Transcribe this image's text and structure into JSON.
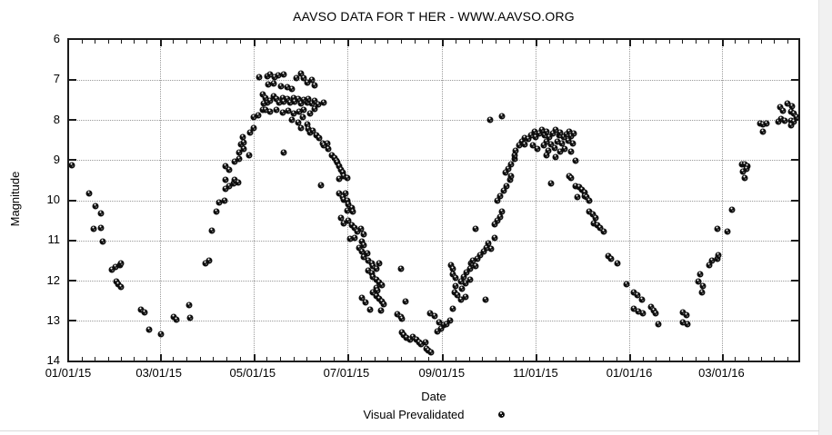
{
  "title": "AAVSO DATA FOR T HER - WWW.AAVSO.ORG",
  "colors": {
    "background": "#ffffff",
    "point": "#0d0d0d",
    "axis": "#1b1b1b",
    "grid": "#9a9a9a",
    "text": "#000000"
  },
  "chart_data": {
    "type": "scatter",
    "title": "AAVSO DATA FOR T HER - WWW.AAVSO.ORG",
    "xlabel": "Date",
    "ylabel": "Magnitude",
    "grid": "dotted",
    "legend": {
      "label": "Visual Prevalidated",
      "marker": "speckled-circle",
      "position": "below-center"
    },
    "x_axis": {
      "type": "time",
      "range_days": [
        0,
        475
      ],
      "tick_days": [
        0,
        59,
        120,
        181,
        243,
        304,
        365,
        425
      ],
      "tick_labels": [
        "01/01/15",
        "03/01/15",
        "05/01/15",
        "07/01/15",
        "09/01/15",
        "11/01/15",
        "01/01/16",
        "03/01/16"
      ],
      "minor_intervals_per_major": 7
    },
    "y_axis": {
      "range": [
        6,
        14
      ],
      "inverted": true,
      "tick_values": [
        6,
        7,
        8,
        9,
        10,
        11,
        12,
        13,
        14
      ],
      "tick_labels": [
        "6",
        "7",
        "8",
        "9",
        "10",
        "11",
        "12",
        "13",
        "14"
      ]
    },
    "points_format": [
      "days_since_2015-01-01",
      "magnitude"
    ],
    "points": [
      [
        2,
        9.12
      ],
      [
        13,
        9.82
      ],
      [
        17,
        10.14
      ],
      [
        21,
        10.32
      ],
      [
        16,
        10.72
      ],
      [
        21,
        10.68
      ],
      [
        22,
        11.04
      ],
      [
        28,
        11.74
      ],
      [
        30,
        11.67
      ],
      [
        33,
        11.63
      ],
      [
        34,
        11.58
      ],
      [
        31,
        12.03
      ],
      [
        32,
        12.1
      ],
      [
        34,
        12.17
      ],
      [
        47,
        12.73
      ],
      [
        49,
        12.8
      ],
      [
        52,
        13.23
      ],
      [
        60,
        13.34
      ],
      [
        68,
        12.92
      ],
      [
        70,
        12.98
      ],
      [
        78,
        12.62
      ],
      [
        79,
        12.94
      ],
      [
        89,
        11.58
      ],
      [
        91,
        11.51
      ],
      [
        93,
        10.75
      ],
      [
        96,
        10.29
      ],
      [
        98,
        10.05
      ],
      [
        101,
        10.0
      ],
      [
        102,
        9.71
      ],
      [
        104,
        9.64
      ],
      [
        107,
        9.59
      ],
      [
        102,
        9.48
      ],
      [
        104,
        9.23
      ],
      [
        102,
        9.14
      ],
      [
        108,
        9.5
      ],
      [
        110,
        9.55
      ],
      [
        108,
        9.03
      ],
      [
        111,
        8.98
      ],
      [
        111,
        8.8
      ],
      [
        114,
        8.73
      ],
      [
        112,
        8.6
      ],
      [
        114,
        8.55
      ],
      [
        113,
        8.42
      ],
      [
        117,
        8.87
      ],
      [
        118,
        8.31
      ],
      [
        120,
        8.19
      ],
      [
        120,
        7.92
      ],
      [
        123,
        7.88
      ],
      [
        126,
        7.74
      ],
      [
        127,
        7.58
      ],
      [
        129,
        7.56
      ],
      [
        124,
        6.93
      ],
      [
        129,
        6.9
      ],
      [
        131,
        6.86
      ],
      [
        134,
        6.93
      ],
      [
        136,
        6.88
      ],
      [
        140,
        6.86
      ],
      [
        130,
        7.11
      ],
      [
        133,
        7.08
      ],
      [
        138,
        7.15
      ],
      [
        142,
        7.18
      ],
      [
        145,
        7.22
      ],
      [
        148,
        6.95
      ],
      [
        151,
        6.84
      ],
      [
        153,
        6.95
      ],
      [
        155,
        7.06
      ],
      [
        158,
        6.99
      ],
      [
        160,
        7.13
      ],
      [
        126,
        7.36
      ],
      [
        128,
        7.45
      ],
      [
        131,
        7.51
      ],
      [
        133,
        7.4
      ],
      [
        135,
        7.47
      ],
      [
        137,
        7.56
      ],
      [
        139,
        7.45
      ],
      [
        140,
        7.54
      ],
      [
        142,
        7.47
      ],
      [
        144,
        7.56
      ],
      [
        146,
        7.45
      ],
      [
        147,
        7.54
      ],
      [
        149,
        7.47
      ],
      [
        151,
        7.58
      ],
      [
        153,
        7.49
      ],
      [
        155,
        7.56
      ],
      [
        156,
        7.47
      ],
      [
        158,
        7.58
      ],
      [
        160,
        7.51
      ],
      [
        162,
        7.6
      ],
      [
        128,
        7.74
      ],
      [
        131,
        7.79
      ],
      [
        135,
        7.74
      ],
      [
        139,
        7.81
      ],
      [
        143,
        7.76
      ],
      [
        146,
        7.83
      ],
      [
        150,
        7.79
      ],
      [
        153,
        7.74
      ],
      [
        157,
        7.83
      ],
      [
        160,
        7.72
      ],
      [
        145,
        7.99
      ],
      [
        149,
        8.06
      ],
      [
        152,
        7.92
      ],
      [
        155,
        8.1
      ],
      [
        151,
        8.19
      ],
      [
        140,
        8.8
      ],
      [
        166,
        7.56
      ],
      [
        164,
        9.62
      ],
      [
        156,
        8.22
      ],
      [
        157,
        8.31
      ],
      [
        159,
        8.26
      ],
      [
        161,
        8.37
      ],
      [
        163,
        8.44
      ],
      [
        165,
        8.58
      ],
      [
        166,
        8.64
      ],
      [
        168,
        8.58
      ],
      [
        169,
        8.71
      ],
      [
        171,
        8.87
      ],
      [
        173,
        8.94
      ],
      [
        174,
        9.01
      ],
      [
        175,
        9.05
      ],
      [
        176,
        9.16
      ],
      [
        177,
        9.25
      ],
      [
        178,
        9.32
      ],
      [
        179,
        9.39
      ],
      [
        181,
        9.44
      ],
      [
        176,
        9.46
      ],
      [
        176,
        9.82
      ],
      [
        178,
        9.91
      ],
      [
        179,
        9.98
      ],
      [
        180,
        9.84
      ],
      [
        181,
        10.02
      ],
      [
        182,
        10.11
      ],
      [
        184,
        10.2
      ],
      [
        185,
        10.29
      ],
      [
        181,
        10.25
      ],
      [
        177,
        10.45
      ],
      [
        179,
        10.57
      ],
      [
        182,
        10.5
      ],
      [
        184,
        10.63
      ],
      [
        186,
        10.7
      ],
      [
        188,
        10.79
      ],
      [
        190,
        10.72
      ],
      [
        192,
        10.86
      ],
      [
        186,
        10.93
      ],
      [
        183,
        10.97
      ],
      [
        191,
        11.04
      ],
      [
        192,
        11.13
      ],
      [
        189,
        11.18
      ],
      [
        191,
        11.27
      ],
      [
        194,
        11.33
      ],
      [
        192,
        11.42
      ],
      [
        195,
        11.51
      ],
      [
        197,
        11.58
      ],
      [
        198,
        11.65
      ],
      [
        200,
        11.72
      ],
      [
        202,
        11.58
      ],
      [
        195,
        11.76
      ],
      [
        197,
        11.83
      ],
      [
        198,
        11.92
      ],
      [
        200,
        11.99
      ],
      [
        202,
        12.06
      ],
      [
        204,
        12.12
      ],
      [
        200,
        12.19
      ],
      [
        201,
        12.26
      ],
      [
        198,
        12.31
      ],
      [
        200,
        12.4
      ],
      [
        202,
        12.46
      ],
      [
        204,
        12.53
      ],
      [
        205,
        12.6
      ],
      [
        191,
        12.44
      ],
      [
        193,
        12.55
      ],
      [
        196,
        12.74
      ],
      [
        203,
        12.76
      ],
      [
        214,
        12.85
      ],
      [
        216,
        12.92
      ],
      [
        217,
        12.96
      ],
      [
        219,
        12.53
      ],
      [
        216,
        11.72
      ],
      [
        217,
        13.3
      ],
      [
        218,
        13.37
      ],
      [
        220,
        13.44
      ],
      [
        222,
        13.48
      ],
      [
        224,
        13.41
      ],
      [
        226,
        13.48
      ],
      [
        228,
        13.55
      ],
      [
        229,
        13.59
      ],
      [
        233,
        13.71
      ],
      [
        234,
        13.75
      ],
      [
        236,
        13.8
      ],
      [
        232,
        13.55
      ],
      [
        235,
        12.83
      ],
      [
        238,
        12.89
      ],
      [
        241,
        13.05
      ],
      [
        244,
        13.12
      ],
      [
        240,
        13.28
      ],
      [
        242,
        13.21
      ],
      [
        246,
        13.1
      ],
      [
        248,
        13.01
      ],
      [
        250,
        12.71
      ],
      [
        249,
        11.63
      ],
      [
        250,
        11.72
      ],
      [
        250,
        11.85
      ],
      [
        252,
        11.94
      ],
      [
        251,
        12.31
      ],
      [
        252,
        12.15
      ],
      [
        253,
        12.37
      ],
      [
        255,
        12.03
      ],
      [
        256,
        12.21
      ],
      [
        257,
        11.92
      ],
      [
        258,
        12.08
      ],
      [
        259,
        11.81
      ],
      [
        261,
        11.99
      ],
      [
        261,
        11.7
      ],
      [
        255,
        12.49
      ],
      [
        258,
        12.42
      ],
      [
        262,
        11.58
      ],
      [
        263,
        11.51
      ],
      [
        265,
        11.65
      ],
      [
        266,
        11.47
      ],
      [
        265,
        10.72
      ],
      [
        271,
        12.49
      ],
      [
        268,
        11.36
      ],
      [
        270,
        11.27
      ],
      [
        272,
        11.18
      ],
      [
        273,
        11.08
      ],
      [
        275,
        11.22
      ],
      [
        277,
        10.95
      ],
      [
        277,
        10.61
      ],
      [
        279,
        10.52
      ],
      [
        281,
        10.41
      ],
      [
        282,
        10.29
      ],
      [
        279,
        10.0
      ],
      [
        281,
        9.89
      ],
      [
        283,
        9.77
      ],
      [
        285,
        9.66
      ],
      [
        287,
        9.5
      ],
      [
        288,
        9.41
      ],
      [
        284,
        9.32
      ],
      [
        286,
        9.21
      ],
      [
        288,
        9.1
      ],
      [
        290,
        8.98
      ],
      [
        290,
        8.87
      ],
      [
        291,
        8.76
      ],
      [
        293,
        8.64
      ],
      [
        295,
        8.53
      ],
      [
        297,
        8.44
      ],
      [
        274,
        7.99
      ],
      [
        282,
        7.9
      ],
      [
        297,
        8.6
      ],
      [
        299,
        8.46
      ],
      [
        301,
        8.37
      ],
      [
        303,
        8.28
      ],
      [
        304,
        8.42
      ],
      [
        306,
        8.33
      ],
      [
        308,
        8.24
      ],
      [
        310,
        8.37
      ],
      [
        311,
        8.28
      ],
      [
        313,
        8.42
      ],
      [
        315,
        8.33
      ],
      [
        317,
        8.24
      ],
      [
        319,
        8.37
      ],
      [
        320,
        8.31
      ],
      [
        322,
        8.42
      ],
      [
        324,
        8.35
      ],
      [
        326,
        8.28
      ],
      [
        327,
        8.4
      ],
      [
        329,
        8.33
      ],
      [
        311,
        8.53
      ],
      [
        314,
        8.6
      ],
      [
        318,
        8.53
      ],
      [
        321,
        8.58
      ],
      [
        325,
        8.51
      ],
      [
        328,
        8.58
      ],
      [
        302,
        8.64
      ],
      [
        305,
        8.71
      ],
      [
        309,
        8.64
      ],
      [
        312,
        8.76
      ],
      [
        316,
        8.69
      ],
      [
        320,
        8.78
      ],
      [
        323,
        8.71
      ],
      [
        327,
        8.78
      ],
      [
        311,
        8.87
      ],
      [
        317,
        8.92
      ],
      [
        330,
        9.01
      ],
      [
        314,
        9.59
      ],
      [
        326,
        9.39
      ],
      [
        327,
        9.44
      ],
      [
        330,
        9.64
      ],
      [
        332,
        9.68
      ],
      [
        334,
        9.75
      ],
      [
        336,
        9.8
      ],
      [
        331,
        9.93
      ],
      [
        336,
        9.89
      ],
      [
        337,
        9.93
      ],
      [
        339,
        10.0
      ],
      [
        339,
        10.29
      ],
      [
        341,
        10.36
      ],
      [
        343,
        10.45
      ],
      [
        342,
        10.57
      ],
      [
        344,
        10.63
      ],
      [
        346,
        10.7
      ],
      [
        348,
        10.79
      ],
      [
        351,
        11.4
      ],
      [
        353,
        11.47
      ],
      [
        357,
        11.58
      ],
      [
        363,
        12.1
      ],
      [
        368,
        12.31
      ],
      [
        370,
        12.37
      ],
      [
        373,
        12.49
      ],
      [
        368,
        12.71
      ],
      [
        371,
        12.78
      ],
      [
        374,
        12.83
      ],
      [
        379,
        12.67
      ],
      [
        381,
        12.76
      ],
      [
        382,
        12.83
      ],
      [
        384,
        13.1
      ],
      [
        400,
        12.8
      ],
      [
        402,
        12.87
      ],
      [
        400,
        13.05
      ],
      [
        403,
        13.1
      ],
      [
        410,
        12.03
      ],
      [
        411,
        11.85
      ],
      [
        412,
        12.31
      ],
      [
        413,
        12.15
      ],
      [
        417,
        11.63
      ],
      [
        419,
        11.51
      ],
      [
        422,
        11.47
      ],
      [
        423,
        11.36
      ],
      [
        422,
        10.72
      ],
      [
        429,
        10.79
      ],
      [
        432,
        10.23
      ],
      [
        438,
        9.1
      ],
      [
        440,
        9.1
      ],
      [
        442,
        9.14
      ],
      [
        441,
        9.21
      ],
      [
        439,
        9.28
      ],
      [
        440,
        9.44
      ],
      [
        450,
        8.08
      ],
      [
        452,
        8.1
      ],
      [
        454,
        8.08
      ],
      [
        452,
        8.28
      ],
      [
        463,
        7.67
      ],
      [
        465,
        7.76
      ],
      [
        462,
        8.03
      ],
      [
        464,
        7.97
      ],
      [
        466,
        8.01
      ],
      [
        468,
        7.58
      ],
      [
        471,
        7.65
      ],
      [
        470,
        7.79
      ],
      [
        472,
        7.83
      ],
      [
        470,
        8.01
      ],
      [
        472,
        8.03
      ],
      [
        474,
        7.92
      ],
      [
        470,
        8.12
      ]
    ]
  }
}
